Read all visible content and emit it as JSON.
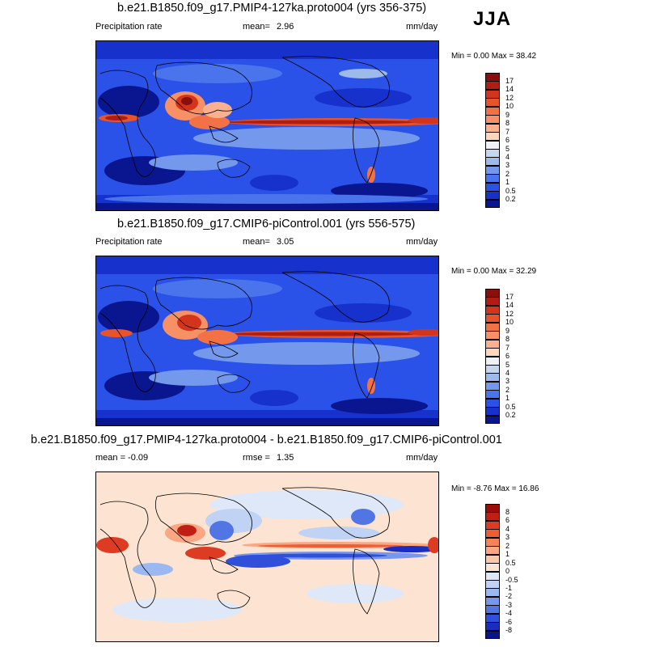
{
  "season": "JJA",
  "panels": [
    {
      "id": "p1",
      "title": "b.e21.B1850.f09_g17.PMIP4-127ka.proto004 (yrs 356-375)",
      "left_label": "Precipitation rate",
      "stat_label": "mean=",
      "stat_value": "2.96",
      "units": "mm/day",
      "minmax": "Min =  0.00 Max =  38.42",
      "type": "abs"
    },
    {
      "id": "p2",
      "title": "b.e21.B1850.f09_g17.CMIP6-piControl.001 (yrs 556-575)",
      "left_label": "Precipitation rate",
      "stat_label": "mean=",
      "stat_value": "3.05",
      "units": "mm/day",
      "minmax": "Min =  0.00 Max =  32.29",
      "type": "abs"
    },
    {
      "id": "p3",
      "title": "b.e21.B1850.f09_g17.PMIP4-127ka.proto004 - b.e21.B1850.f09_g17.CMIP6-piControl.001",
      "left_label": "mean =  -0.09",
      "stat_label": "rmse =",
      "stat_value": "1.35",
      "units": "mm/day",
      "minmax": "Min = -8.76 Max =  16.86",
      "type": "diff"
    }
  ],
  "colorbars": {
    "abs": {
      "ticks": [
        "17",
        "14",
        "12",
        "10",
        "9",
        "8",
        "7",
        "6",
        "5",
        "4",
        "3",
        "2",
        "1",
        "0.5",
        "0.2"
      ],
      "colors": [
        "#8a0f0c",
        "#b01d12",
        "#d2341c",
        "#e8542a",
        "#f27246",
        "#f79065",
        "#fbb18f",
        "#fdd6c0",
        "#eef1f7",
        "#c6d6ef",
        "#9ebaea",
        "#7499ec",
        "#4a74ec",
        "#2a52e8",
        "#1732cc",
        "#0a1690"
      ]
    },
    "diff": {
      "ticks": [
        "8",
        "6",
        "4",
        "3",
        "2",
        "1",
        "0.5",
        "0",
        "-0.5",
        "-1",
        "-2",
        "-3",
        "-4",
        "-6",
        "-8"
      ],
      "colors": [
        "#9b0d0a",
        "#c11f14",
        "#dd3c22",
        "#ee5d34",
        "#f6825a",
        "#fba784",
        "#fdc7a9",
        "#fde4d2",
        "#dfe8f8",
        "#c0d3f5",
        "#9bb8f1",
        "#7697ec",
        "#5275e6",
        "#3050dc",
        "#1a2cc2",
        "#0a1490"
      ]
    }
  }
}
